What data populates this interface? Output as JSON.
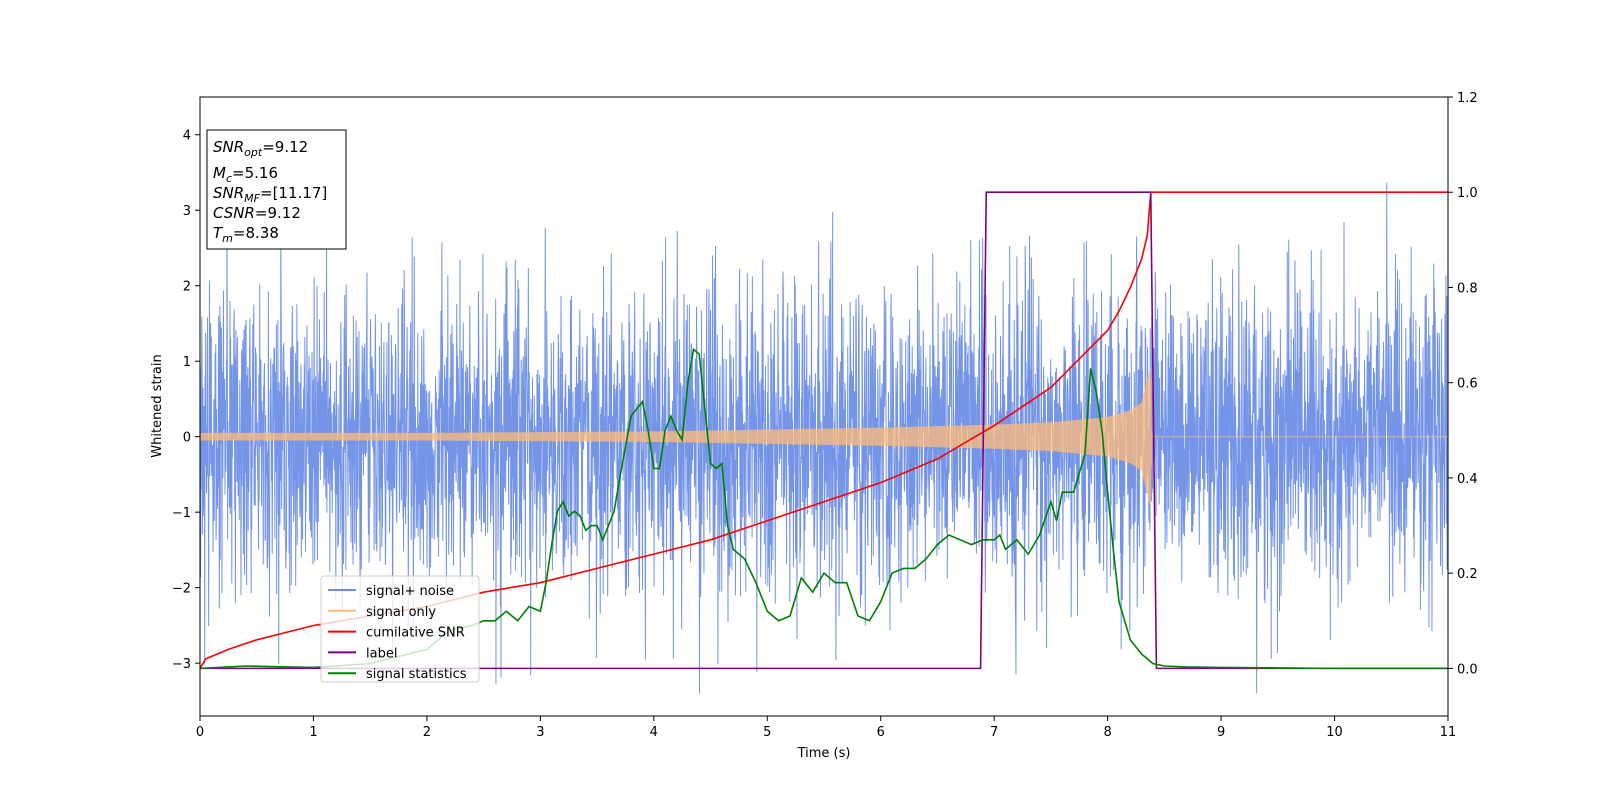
{
  "chart_data": {
    "type": "line",
    "xlabel": "Time (s)",
    "ylabel": "Whitened strain",
    "xlim": [
      0,
      11
    ],
    "ylim_left": [
      -3.7,
      4.5
    ],
    "ylim_right": [
      -0.1,
      1.2
    ],
    "x_ticks": [
      0,
      1,
      2,
      3,
      4,
      5,
      6,
      7,
      8,
      9,
      10,
      11
    ],
    "y_ticks_left": [
      -3,
      -2,
      -1,
      0,
      1,
      2,
      3,
      4
    ],
    "y_ticks_right": [
      "0.0",
      "0.2",
      "0.4",
      "0.6",
      "0.8",
      "1.0",
      "1.2"
    ],
    "y_tick_values_right": [
      0.0,
      0.2,
      0.4,
      0.6,
      0.8,
      1.0,
      1.2
    ],
    "grid": false,
    "legend_position": "lower-left",
    "series": [
      {
        "name": "signal+ noise",
        "color": "#6d8ee6",
        "axis": "left",
        "kind": "noise",
        "std": 1.0,
        "x_range": [
          0,
          11
        ]
      },
      {
        "name": "signal only",
        "color": "#ffbb78",
        "axis": "left",
        "kind": "chirp",
        "amplitude_points": [
          [
            0,
            0.05
          ],
          [
            2,
            0.05
          ],
          [
            4,
            0.07
          ],
          [
            6,
            0.12
          ],
          [
            7,
            0.16
          ],
          [
            7.5,
            0.19
          ],
          [
            8,
            0.26
          ],
          [
            8.2,
            0.35
          ],
          [
            8.3,
            0.45
          ],
          [
            8.38,
            0.95
          ],
          [
            8.39,
            0.0
          ],
          [
            11,
            0.0
          ]
        ]
      },
      {
        "name": "cumilative SNR",
        "color": "#ff0000",
        "axis": "right",
        "x": [
          0,
          0.05,
          0.25,
          0.5,
          1,
          1.5,
          2,
          2.5,
          3,
          3.5,
          4,
          4.5,
          5,
          5.5,
          6,
          6.5,
          7,
          7.5,
          8,
          8.1,
          8.2,
          8.3,
          8.35,
          8.38,
          9,
          10,
          11
        ],
        "y": [
          0.0,
          0.02,
          0.04,
          0.06,
          0.09,
          0.11,
          0.13,
          0.16,
          0.18,
          0.21,
          0.24,
          0.27,
          0.31,
          0.35,
          0.39,
          0.44,
          0.51,
          0.59,
          0.71,
          0.75,
          0.8,
          0.86,
          0.91,
          1.0,
          1.0,
          1.0,
          1.0
        ]
      },
      {
        "name": "label",
        "color": "#800080",
        "axis": "right",
        "x": [
          0,
          6.88,
          6.93,
          8.38,
          8.43,
          11
        ],
        "y": [
          0,
          0,
          1,
          1,
          0,
          0
        ]
      },
      {
        "name": "signal statistics",
        "color": "#008000",
        "axis": "right",
        "x": [
          0,
          0.4,
          1.0,
          1.5,
          2.0,
          2.2,
          2.4,
          2.5,
          2.6,
          2.7,
          2.8,
          2.9,
          3.0,
          3.05,
          3.1,
          3.15,
          3.2,
          3.25,
          3.3,
          3.35,
          3.4,
          3.45,
          3.5,
          3.55,
          3.6,
          3.65,
          3.7,
          3.8,
          3.9,
          3.95,
          4.0,
          4.05,
          4.1,
          4.15,
          4.2,
          4.25,
          4.3,
          4.35,
          4.4,
          4.5,
          4.55,
          4.6,
          4.65,
          4.7,
          4.8,
          4.9,
          5.0,
          5.1,
          5.2,
          5.25,
          5.3,
          5.4,
          5.5,
          5.6,
          5.7,
          5.8,
          5.9,
          6.0,
          6.1,
          6.2,
          6.3,
          6.4,
          6.5,
          6.6,
          6.7,
          6.8,
          6.9,
          7.0,
          7.05,
          7.1,
          7.2,
          7.3,
          7.4,
          7.5,
          7.55,
          7.6,
          7.7,
          7.8,
          7.85,
          7.9,
          7.95,
          8.0,
          8.05,
          8.1,
          8.2,
          8.3,
          8.4,
          8.5,
          8.7,
          9.0,
          9.5,
          10.0,
          11.0
        ],
        "y": [
          0.0,
          0.005,
          0.002,
          0.01,
          0.04,
          0.08,
          0.09,
          0.1,
          0.1,
          0.12,
          0.1,
          0.13,
          0.12,
          0.18,
          0.26,
          0.33,
          0.35,
          0.32,
          0.33,
          0.32,
          0.29,
          0.3,
          0.3,
          0.27,
          0.3,
          0.33,
          0.4,
          0.53,
          0.56,
          0.5,
          0.42,
          0.42,
          0.5,
          0.53,
          0.5,
          0.48,
          0.6,
          0.67,
          0.66,
          0.43,
          0.42,
          0.43,
          0.3,
          0.25,
          0.23,
          0.18,
          0.12,
          0.1,
          0.11,
          0.15,
          0.19,
          0.16,
          0.2,
          0.18,
          0.18,
          0.11,
          0.1,
          0.14,
          0.2,
          0.21,
          0.21,
          0.23,
          0.26,
          0.28,
          0.27,
          0.26,
          0.27,
          0.27,
          0.28,
          0.25,
          0.27,
          0.24,
          0.28,
          0.35,
          0.31,
          0.37,
          0.37,
          0.45,
          0.63,
          0.58,
          0.5,
          0.37,
          0.25,
          0.14,
          0.06,
          0.03,
          0.01,
          0.005,
          0.003,
          0.002,
          0.001,
          0.0,
          0.0
        ]
      }
    ],
    "annotations": {
      "snr_opt": {
        "symbol": "SNR",
        "sub": "opt",
        "value": "=9.12"
      },
      "mc": {
        "symbol": "M",
        "sub": "c",
        "value": "=5.16"
      },
      "snr_mf": {
        "symbol": "SNR",
        "sub": "MF",
        "value": "=[11.17]"
      },
      "csnr": {
        "symbol": "CSNR",
        "sub": "",
        "value": "=9.12"
      },
      "tm": {
        "symbol": "T",
        "sub": "m",
        "value": "=8.38"
      }
    }
  }
}
